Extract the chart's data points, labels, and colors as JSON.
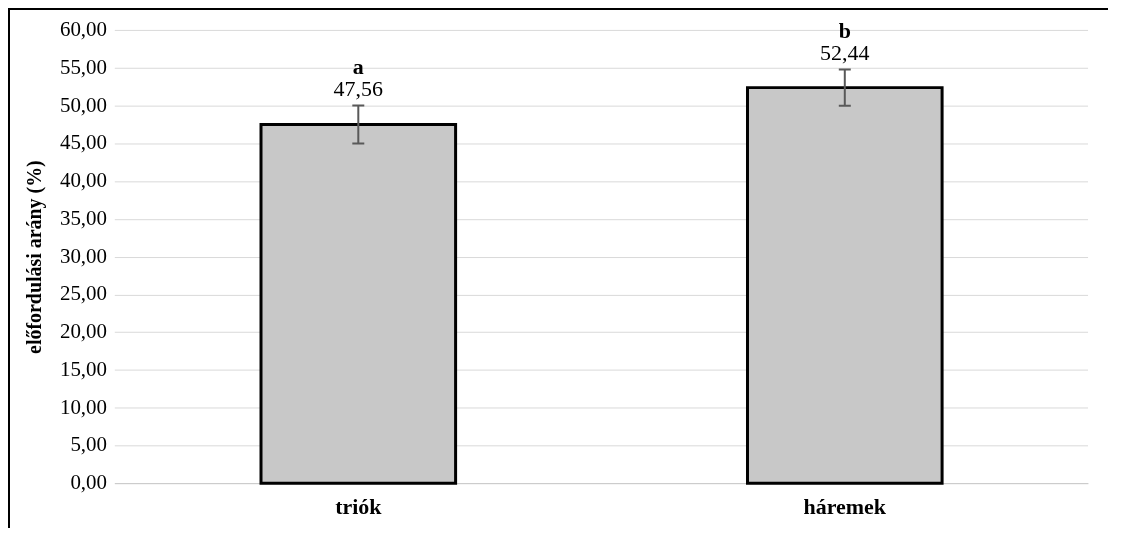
{
  "chart_data": {
    "type": "bar",
    "ylabel": "előfordulási arány (%)",
    "categories": [
      "triók",
      "háremek"
    ],
    "values": [
      47.56,
      52.44
    ],
    "errors": [
      2.5,
      2.4
    ],
    "value_labels": [
      "47,56",
      "52,44"
    ],
    "color": "#c8c8c8",
    "ylim": [
      0,
      60
    ],
    "yticks": [
      {
        "value": 0,
        "label": "0,00"
      },
      {
        "value": 5,
        "label": "5,00"
      },
      {
        "value": 10,
        "label": "10,00"
      },
      {
        "value": 15,
        "label": "15,00"
      },
      {
        "value": 20,
        "label": "20,00"
      },
      {
        "value": 25,
        "label": "25,00"
      },
      {
        "value": 30,
        "label": "30,00"
      },
      {
        "value": 35,
        "label": "35,00"
      },
      {
        "value": 40,
        "label": "40,00"
      },
      {
        "value": 45,
        "label": "45,00"
      },
      {
        "value": 50,
        "label": "50,00"
      },
      {
        "value": 55,
        "label": "55,00"
      },
      {
        "value": 60,
        "label": "60,00"
      }
    ],
    "annotations": [
      "a",
      "b"
    ],
    "grid": "y",
    "legend": false
  }
}
